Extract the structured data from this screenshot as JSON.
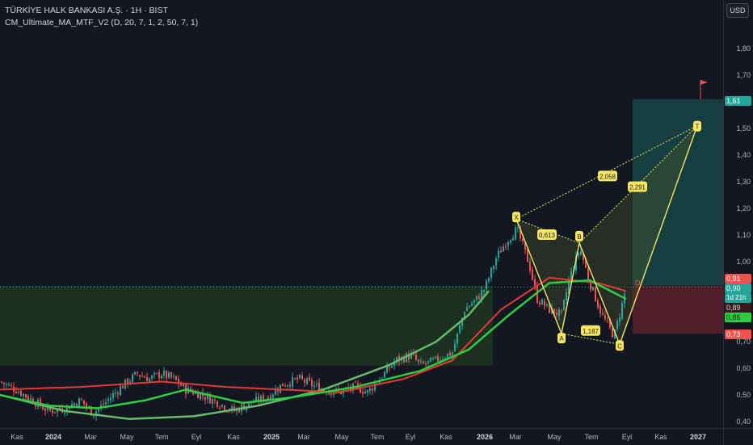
{
  "header": {
    "symbol_title": "TÜRKİYE HALK BANKASI A.Ş. · 1H · BIST",
    "indicator": "CM_Ultimate_MA_MTF_V2 (D, 20, 7, 1, 2, 50, 7, 1)",
    "currency": "USD"
  },
  "price_axis": [
    "1,80",
    "1,70",
    "1,60",
    "1,50",
    "1,40",
    "1,30",
    "1,20",
    "1,10",
    "1,00",
    "0,90",
    "0,80",
    "0,70",
    "0,60",
    "0,50",
    "0,40"
  ],
  "price_tags": {
    "target": "1,61",
    "sell": "0,91",
    "last": "0,90",
    "countdown": "1d 21h",
    "ma_red": "0,89",
    "ma_green": "0,86",
    "stop": "0,73"
  },
  "time_axis": [
    {
      "label": "Kas",
      "bold": false
    },
    {
      "label": "2024",
      "bold": true
    },
    {
      "label": "Mar",
      "bold": false
    },
    {
      "label": "May",
      "bold": false
    },
    {
      "label": "Tem",
      "bold": false
    },
    {
      "label": "Eyl",
      "bold": false
    },
    {
      "label": "Kas",
      "bold": false
    },
    {
      "label": "2025",
      "bold": true
    },
    {
      "label": "Mar",
      "bold": false
    },
    {
      "label": "May",
      "bold": false
    },
    {
      "label": "Tem",
      "bold": false
    },
    {
      "label": "Eyl",
      "bold": false
    },
    {
      "label": "Kas",
      "bold": false
    },
    {
      "label": "2026",
      "bold": true
    },
    {
      "label": "Mar",
      "bold": false
    },
    {
      "label": "May",
      "bold": false
    },
    {
      "label": "Tem",
      "bold": false
    },
    {
      "label": "Eyl",
      "bold": false
    },
    {
      "label": "Kas",
      "bold": false
    },
    {
      "label": "2027",
      "bold": true
    }
  ],
  "pattern_labels": {
    "X": "X",
    "A": "A",
    "B": "B",
    "C": "C",
    "D": "D",
    "T": "T",
    "ratio_xab": "0,613",
    "ratio_abc": "1,187",
    "ratio_bcd": "2,058",
    "ratio_xad": "2,291"
  },
  "colors": {
    "background": "#131722",
    "up": "#26a69a",
    "down": "#ef5350",
    "ma_red": "#e53935",
    "ma_green": "#2ecc40",
    "ma_light": "#66bb6a",
    "pattern": "#f5e663",
    "target_zone": "#1a5e55",
    "stop_zone": "#5a1e2a"
  },
  "chart_data": {
    "type": "candlestick",
    "title": "TÜRKİYE HALK BANKASI A.Ş. · 1H · BIST",
    "ylabel": "USD",
    "ylim": [
      0.38,
      1.95
    ],
    "y_ticks": [
      0.4,
      0.5,
      0.6,
      0.7,
      0.8,
      0.9,
      1.0,
      1.1,
      1.2,
      1.3,
      1.4,
      1.5,
      1.6,
      1.7,
      1.8
    ],
    "close_anchors": [
      [
        0,
        0.55
      ],
      [
        20,
        0.52
      ],
      [
        40,
        0.48
      ],
      [
        60,
        0.44
      ],
      [
        80,
        0.45
      ],
      [
        100,
        0.48
      ],
      [
        115,
        0.43
      ],
      [
        130,
        0.47
      ],
      [
        150,
        0.53
      ],
      [
        170,
        0.58
      ],
      [
        185,
        0.56
      ],
      [
        200,
        0.58
      ],
      [
        215,
        0.56
      ],
      [
        230,
        0.52
      ],
      [
        250,
        0.5
      ],
      [
        270,
        0.47
      ],
      [
        290,
        0.44
      ],
      [
        310,
        0.47
      ],
      [
        330,
        0.49
      ],
      [
        350,
        0.54
      ],
      [
        370,
        0.56
      ],
      [
        385,
        0.54
      ],
      [
        400,
        0.52
      ],
      [
        420,
        0.51
      ],
      [
        440,
        0.53
      ],
      [
        455,
        0.51
      ],
      [
        470,
        0.56
      ],
      [
        490,
        0.63
      ],
      [
        510,
        0.65
      ],
      [
        520,
        0.61
      ],
      [
        540,
        0.63
      ],
      [
        560,
        0.66
      ],
      [
        575,
        0.82
      ],
      [
        590,
        0.86
      ],
      [
        600,
        0.9
      ],
      [
        615,
        1.02
      ],
      [
        630,
        1.09
      ],
      [
        640,
        1.12
      ],
      [
        655,
        0.99
      ],
      [
        665,
        0.86
      ],
      [
        680,
        0.82
      ],
      [
        695,
        0.8
      ],
      [
        705,
        0.94
      ],
      [
        718,
        1.05
      ],
      [
        730,
        0.92
      ],
      [
        745,
        0.8
      ],
      [
        760,
        0.72
      ],
      [
        770,
        0.84
      ],
      [
        775,
        0.9
      ]
    ],
    "ma_red": [
      [
        0,
        0.52
      ],
      [
        100,
        0.53
      ],
      [
        200,
        0.55
      ],
      [
        280,
        0.53
      ],
      [
        350,
        0.52
      ],
      [
        420,
        0.51
      ],
      [
        500,
        0.56
      ],
      [
        560,
        0.63
      ],
      [
        620,
        0.82
      ],
      [
        680,
        0.94
      ],
      [
        740,
        0.92
      ],
      [
        775,
        0.89
      ]
    ],
    "ma_green": [
      [
        0,
        0.5
      ],
      [
        60,
        0.46
      ],
      [
        120,
        0.45
      ],
      [
        180,
        0.48
      ],
      [
        230,
        0.52
      ],
      [
        300,
        0.47
      ],
      [
        360,
        0.49
      ],
      [
        440,
        0.53
      ],
      [
        520,
        0.59
      ],
      [
        580,
        0.67
      ],
      [
        630,
        0.8
      ],
      [
        680,
        0.92
      ],
      [
        730,
        0.93
      ],
      [
        775,
        0.86
      ]
    ],
    "ma_light_curve": [
      [
        0,
        0.5
      ],
      [
        80,
        0.44
      ],
      [
        160,
        0.41
      ],
      [
        240,
        0.42
      ],
      [
        320,
        0.46
      ],
      [
        400,
        0.52
      ],
      [
        480,
        0.61
      ],
      [
        540,
        0.7
      ],
      [
        580,
        0.8
      ],
      [
        605,
        0.89
      ]
    ],
    "pattern_points": {
      "X": [
        639,
        1.16
      ],
      "A": [
        695,
        0.73
      ],
      "B": [
        717,
        1.07
      ],
      "C": [
        767,
        0.69
      ],
      "D": [
        863,
        1.51
      ]
    },
    "target_zone": {
      "x": [
        783,
        895
      ],
      "y": [
        0.91,
        1.61
      ]
    },
    "stop_zone": {
      "x": [
        783,
        895
      ],
      "y": [
        0.73,
        0.91
      ]
    },
    "support_zone": {
      "x": [
        0,
        610
      ],
      "y": [
        0.61,
        0.91
      ]
    }
  }
}
